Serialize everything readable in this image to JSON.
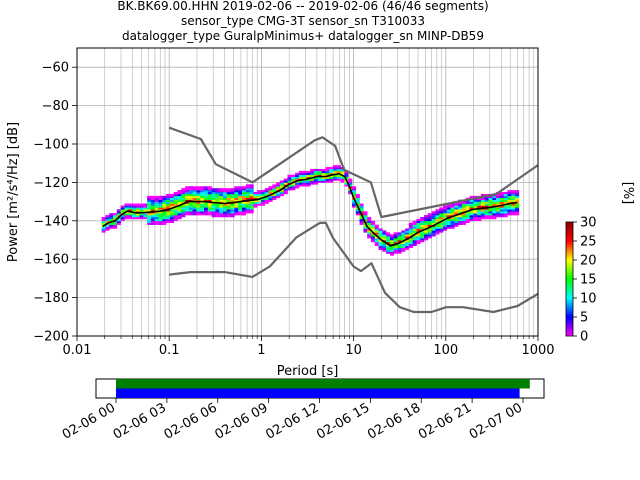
{
  "chart_data": [
    {
      "type": "heatmap",
      "title_lines": [
        "BK.BK69.00.HHN   2019-02-06 -- 2019-02-06  (46/46 segments)",
        "sensor_type CMG-3T sensor_sn T310033",
        "datalogger_type GuralpMinimus+ datalogger_sn MINP-DB59"
      ],
      "xlabel": "Period [s]",
      "ylabel": "Power [m²/s⁴/Hz] [dB]",
      "x_scale": "log",
      "xlim": [
        0.01,
        1000
      ],
      "ylim": [
        -200,
        -50
      ],
      "x_ticks": [
        {
          "value": 0.01,
          "label": "0.01"
        },
        {
          "value": 0.1,
          "label": "0.1"
        },
        {
          "value": 1,
          "label": "1"
        },
        {
          "value": 10,
          "label": "10"
        },
        {
          "value": 100,
          "label": "100"
        },
        {
          "value": 1000,
          "label": "1000"
        }
      ],
      "y_ticks": [
        {
          "value": -60,
          "label": "−60"
        },
        {
          "value": -80,
          "label": "−80"
        },
        {
          "value": -100,
          "label": "−100"
        },
        {
          "value": -120,
          "label": "−120"
        },
        {
          "value": -140,
          "label": "−140"
        },
        {
          "value": -160,
          "label": "−160"
        },
        {
          "value": -180,
          "label": "−180"
        },
        {
          "value": -200,
          "label": "−200"
        }
      ],
      "grid": true,
      "colorbar": {
        "label": "[%]",
        "min": 0,
        "max": 30,
        "ticks": [
          {
            "value": 0,
            "label": "0"
          },
          {
            "value": 5,
            "label": "5"
          },
          {
            "value": 10,
            "label": "10"
          },
          {
            "value": 15,
            "label": "15"
          },
          {
            "value": 20,
            "label": "20"
          },
          {
            "value": 25,
            "label": "25"
          },
          {
            "value": 30,
            "label": "30"
          }
        ],
        "colors": [
          "#ff00ff",
          "#0000ff",
          "#00ffff",
          "#00ff00",
          "#ffff00",
          "#ff0000",
          "#8b0000"
        ]
      },
      "series": [
        {
          "role": "mean",
          "color": "#000000",
          "x": [
            0.019,
            0.022,
            0.026,
            0.03,
            0.035,
            0.045,
            0.06,
            0.08,
            0.1,
            0.13,
            0.16,
            0.2,
            0.25,
            0.3,
            0.4,
            0.5,
            0.7,
            0.9,
            1.2,
            1.6,
            2.0,
            2.5,
            3.0,
            4.0,
            5.0,
            6.0,
            7.0,
            8.0,
            9.0,
            10,
            12,
            14,
            17,
            20,
            25,
            30,
            40,
            50,
            70,
            100,
            150,
            200,
            300,
            400,
            500,
            600
          ],
          "y": [
            -143,
            -141,
            -140,
            -137,
            -135,
            -136,
            -135.5,
            -135,
            -134,
            -132,
            -130,
            -130,
            -130,
            -130.5,
            -131,
            -130.5,
            -129.5,
            -129,
            -127,
            -124,
            -121,
            -119,
            -118.5,
            -117,
            -117,
            -116,
            -115.5,
            -117,
            -122,
            -128,
            -136,
            -143,
            -147,
            -150,
            -153,
            -152,
            -149,
            -146,
            -143,
            -139,
            -136,
            -134,
            -133,
            -132,
            -131,
            -130.5
          ]
        },
        {
          "role": "noise-model-high",
          "color": "#666666",
          "x": [
            0.1,
            0.22,
            0.32,
            0.8,
            3.8,
            4.6,
            6.3,
            7.9,
            15.4,
            20,
            354.8,
            1000
          ],
          "y": [
            -91.5,
            -97.4,
            -110.5,
            -120,
            -98,
            -96.5,
            -101,
            -113.5,
            -120,
            -138,
            -126,
            -111
          ]
        },
        {
          "role": "noise-model-low",
          "color": "#666666",
          "x": [
            0.1,
            0.17,
            0.4,
            0.8,
            1.24,
            2.4,
            4.3,
            5.0,
            6.0,
            10.0,
            12.0,
            15.6,
            21.9,
            31.6,
            45,
            70,
            101,
            154,
            328,
            600,
            1000
          ],
          "y": [
            -168,
            -166.7,
            -166.7,
            -169.2,
            -163.7,
            -148.6,
            -141.1,
            -141.1,
            -149.0,
            -163.8,
            -166.2,
            -162.1,
            -177.5,
            -185.0,
            -187.5,
            -187.5,
            -185.0,
            -185.0,
            -187.5,
            -184.4,
            -178
          ]
        }
      ]
    },
    {
      "type": "bar",
      "x_ticks": [
        "02-06 00",
        "02-06 03",
        "02-06 06",
        "02-06 09",
        "02-06 12",
        "02-06 15",
        "02-06 18",
        "02-06 21",
        "02-07 00"
      ],
      "series": [
        {
          "role": "data-coverage",
          "color": "#008000",
          "start_hour": 0,
          "end_hour": 24.4
        },
        {
          "role": "psd-coverage",
          "color": "#0000ff",
          "start_hour": 0,
          "end_hour": 23.8
        }
      ]
    }
  ]
}
